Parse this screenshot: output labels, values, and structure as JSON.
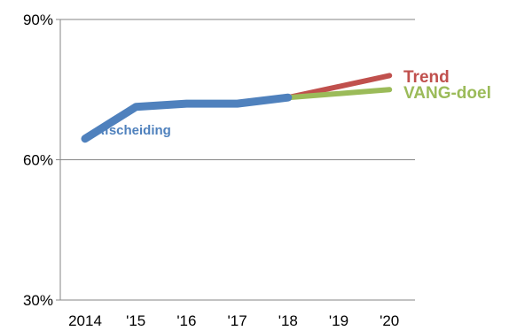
{
  "chart_data": {
    "type": "line",
    "categories": [
      "2014",
      "'15",
      "'16",
      "'17",
      "'18",
      "'19",
      "'20"
    ],
    "ylim": [
      30,
      90
    ],
    "yticks": [
      30,
      60,
      90
    ],
    "ytick_labels": [
      "30%",
      "60%",
      "90%"
    ],
    "grid": true,
    "series": [
      {
        "name": "Trend",
        "color": "#C0504D",
        "x": [
          "'18",
          "'20"
        ],
        "values": [
          73.3,
          78
        ]
      },
      {
        "name": "VANG-doel",
        "color": "#9BBB59",
        "x": [
          "'18",
          "'20"
        ],
        "values": [
          73.3,
          75
        ]
      },
      {
        "name": "Afscheiding",
        "color": "#4F81BD",
        "x": [
          "2014",
          "'15",
          "'16",
          "'17",
          "'18"
        ],
        "values": [
          64.5,
          71.3,
          72,
          72,
          73.3
        ]
      }
    ],
    "annotations": {
      "trend": "Trend",
      "vang": "VANG-doel",
      "afscheiding": "Afscheiding"
    }
  }
}
